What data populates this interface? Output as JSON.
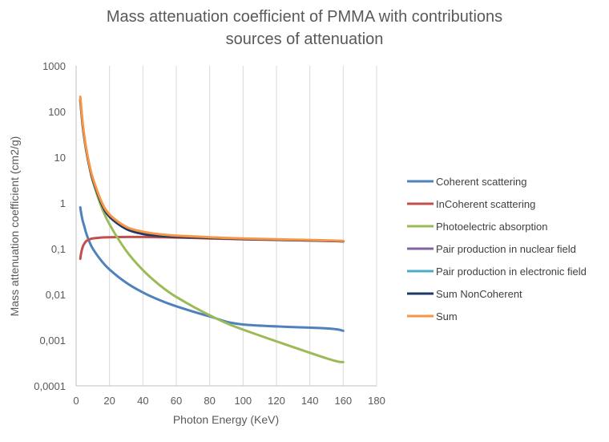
{
  "chart_data": {
    "type": "line",
    "title": "Mass attenuation coefficient of PMMA with contributions sources of attenuation",
    "title_lines": [
      "Mass attenuation coefficient of PMMA with contributions",
      "sources of attenuation"
    ],
    "xlabel": "Photon Energy (KeV)",
    "ylabel": "Mass attenuation coefficient (cm2/g)",
    "xlim": [
      0,
      180
    ],
    "ylim": [
      0.0001,
      1000
    ],
    "yscale": "log",
    "grid": "vertical",
    "legend_position": "right",
    "x_ticks": [
      "0",
      "20",
      "40",
      "60",
      "80",
      "100",
      "120",
      "140",
      "160",
      "180"
    ],
    "y_ticks": [
      "0,0001",
      "0,001",
      "0,01",
      "0,1",
      "1",
      "10",
      "100",
      "1000"
    ],
    "x": [
      2.5,
      3,
      4,
      5,
      6,
      8,
      10,
      15,
      20,
      30,
      40,
      50,
      60,
      80,
      100,
      150,
      160
    ],
    "series": [
      {
        "name": "Coherent scattering",
        "color": "#4F81BD",
        "values": [
          0.8,
          0.6,
          0.4,
          0.3,
          0.22,
          0.14,
          0.1,
          0.055,
          0.035,
          0.018,
          0.011,
          0.0075,
          0.0055,
          0.0033,
          0.0022,
          0.0018,
          0.0016
        ]
      },
      {
        "name": "InCoherent scattering",
        "color": "#C0504D",
        "values": [
          0.06,
          0.08,
          0.11,
          0.13,
          0.145,
          0.16,
          0.168,
          0.175,
          0.178,
          0.18,
          0.18,
          0.178,
          0.175,
          0.168,
          0.161,
          0.148,
          0.145
        ]
      },
      {
        "name": "Photoelectric absorption",
        "color": "#9BBB59",
        "values": [
          180,
          110,
          48,
          25,
          14.5,
          6,
          3,
          0.85,
          0.34,
          0.09,
          0.034,
          0.016,
          0.0088,
          0.0035,
          0.0017,
          0.0004,
          0.00033
        ]
      },
      {
        "name": "Pair production in nuclear field",
        "color": "#8064A2",
        "values": []
      },
      {
        "name": "Pair production in electronic field",
        "color": "#4BACC6",
        "values": []
      },
      {
        "name": "Sum NonCoherent",
        "color": "#1F3864",
        "values": [
          180,
          110,
          48,
          25,
          14.6,
          6.2,
          3.2,
          1.0,
          0.5,
          0.27,
          0.21,
          0.19,
          0.182,
          0.172,
          0.163,
          0.149,
          0.145
        ]
      },
      {
        "name": "Sum",
        "color": "#F79646",
        "values": [
          210,
          125,
          55,
          28,
          16,
          6.7,
          3.5,
          1.1,
          0.56,
          0.3,
          0.235,
          0.207,
          0.193,
          0.178,
          0.167,
          0.152,
          0.148
        ]
      }
    ]
  }
}
